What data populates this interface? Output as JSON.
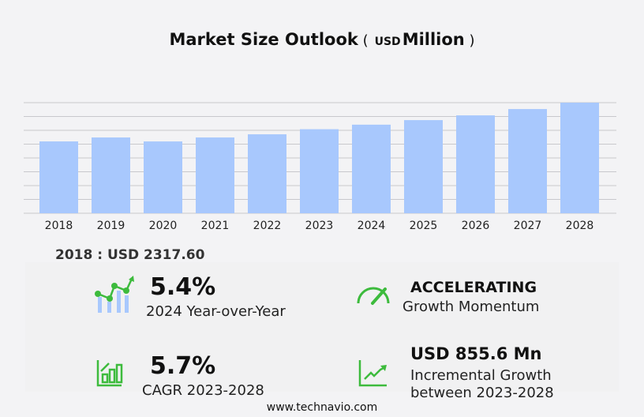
{
  "chart_data": {
    "type": "bar",
    "title": "Market Size Outlook",
    "title_unit": "USD",
    "title_unit_word": "Million",
    "categories": [
      "2018",
      "2019",
      "2020",
      "2021",
      "2022",
      "2023",
      "2024",
      "2025",
      "2026",
      "2027",
      "2028"
    ],
    "values": [
      2317.6,
      2445,
      2317,
      2445,
      2547,
      2712,
      2858,
      3005,
      3158,
      3362,
      3568
    ],
    "ylim": [
      0,
      3568
    ],
    "grid": true,
    "gridlines": 8,
    "bar_color": "#a8c8fd"
  },
  "base_label": "2018 : USD  2317.60",
  "stats": {
    "yoy": {
      "value": "5.4%",
      "label": "2024 Year-over-Year"
    },
    "momentum": {
      "value": "ACCELERATING",
      "label": "Growth Momentum"
    },
    "cagr": {
      "value": "5.7%",
      "label": "CAGR 2023-2028"
    },
    "incremental": {
      "value": "USD 855.6 Mn",
      "label1": "Incremental Growth",
      "label2": "between 2023-2028"
    }
  },
  "accent_color": "#3dbb3d",
  "footer": "www.technavio.com"
}
